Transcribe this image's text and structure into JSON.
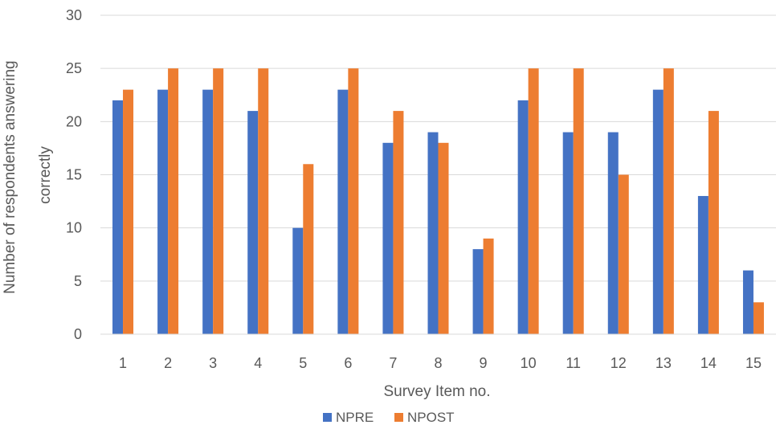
{
  "chart_data": {
    "type": "bar",
    "title": "",
    "xlabel": "Survey Item no.",
    "ylabel_lines": [
      "Number of respondents answering",
      "correctly"
    ],
    "categories": [
      "1",
      "2",
      "3",
      "4",
      "5",
      "6",
      "7",
      "8",
      "9",
      "10",
      "11",
      "12",
      "13",
      "14",
      "15"
    ],
    "series": [
      {
        "name": "NPRE",
        "color": "#4472C4",
        "values": [
          22,
          23,
          23,
          21,
          10,
          23,
          18,
          19,
          8,
          22,
          19,
          19,
          23,
          13,
          6
        ]
      },
      {
        "name": "NPOST",
        "color": "#ED7D31",
        "values": [
          23,
          25,
          25,
          25,
          16,
          25,
          21,
          18,
          9,
          25,
          25,
          15,
          25,
          21,
          3
        ]
      }
    ],
    "ylim": [
      0,
      30
    ],
    "yticks": [
      "0",
      "5",
      "10",
      "15",
      "20",
      "25",
      "30"
    ],
    "grid": true,
    "legend_position": "bottom"
  }
}
